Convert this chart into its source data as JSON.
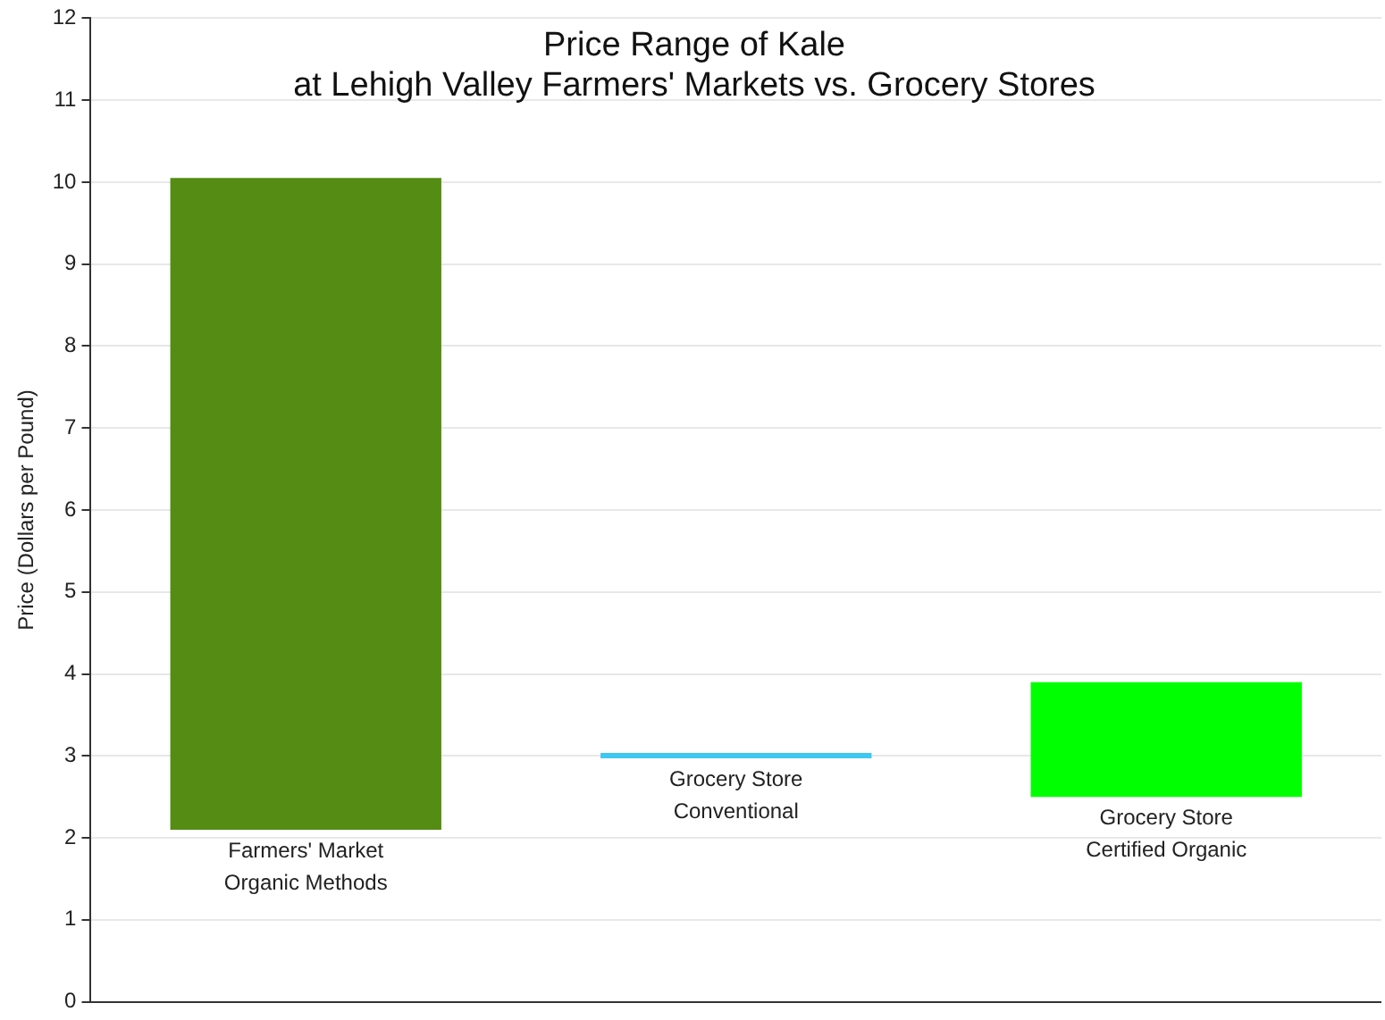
{
  "chart_data": {
    "type": "bar",
    "title": "Price Range of Kale\nat Lehigh Valley Farmers' Markets vs. Grocery Stores",
    "ylabel": "Price (Dollars per Pound)",
    "categories": [
      "Farmers' Market\nOrganic Methods",
      "Grocery Store\nConventional",
      "Grocery Store\nCertified Organic"
    ],
    "base": [
      2.1,
      2.97,
      2.5
    ],
    "values": [
      7.95,
      0.06,
      1.4
    ],
    "colors": [
      "#548c14",
      "#3cc8f0",
      "#00ff00"
    ],
    "ylim": [
      0,
      12
    ],
    "yticks": [
      0,
      1,
      2,
      3,
      4,
      5,
      6,
      7,
      8,
      9,
      10,
      11,
      12
    ],
    "grid": "y",
    "legend": false
  }
}
